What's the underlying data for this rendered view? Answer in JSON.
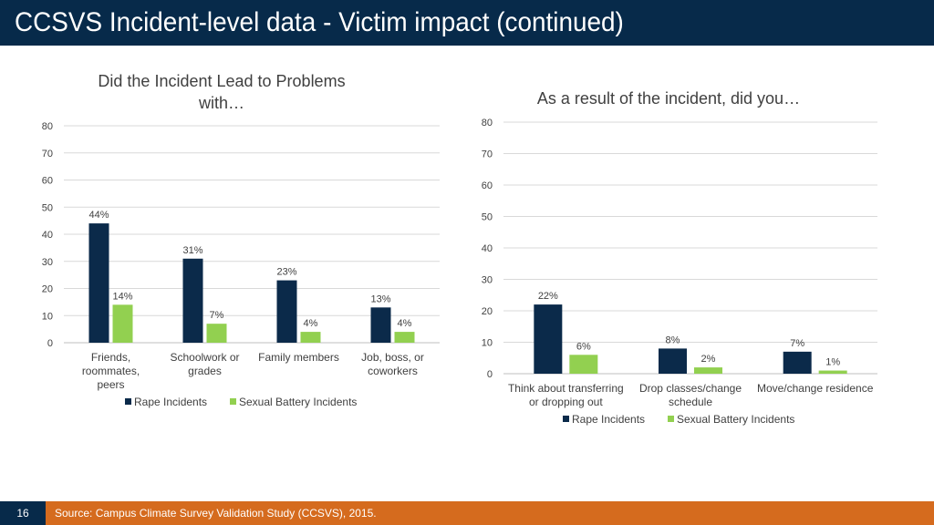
{
  "page": {
    "title": "CCSVS Incident-level data - Victim impact (continued)",
    "page_number": "16",
    "source": "Source: Campus Climate Survey Validation Study (CCSVS), 2015."
  },
  "colors": {
    "header_bg": "#072a4a",
    "footer_bg": "#d56b1e",
    "rape_series": "#0b2a4a",
    "battery_series": "#92d050"
  },
  "chart_data": [
    {
      "type": "bar",
      "title": [
        "Did the Incident Lead to Problems",
        "with…"
      ],
      "categories": [
        [
          "Friends,",
          "roommates,",
          "peers"
        ],
        [
          "Schoolwork or",
          "grades"
        ],
        [
          "Family members"
        ],
        [
          "Job, boss, or",
          "coworkers"
        ]
      ],
      "series": [
        {
          "name": "Rape Incidents",
          "values": [
            44,
            31,
            23,
            13
          ],
          "labels": [
            "44%",
            "31%",
            "23%",
            "13%"
          ]
        },
        {
          "name": "Sexual Battery Incidents",
          "values": [
            14,
            7,
            4,
            4
          ],
          "labels": [
            "14%",
            "7%",
            "4%",
            "4%"
          ]
        }
      ],
      "yticks": [
        "0",
        "10",
        "20",
        "30",
        "40",
        "50",
        "60",
        "70",
        "80"
      ],
      "ylim": [
        0,
        80
      ],
      "grid": true,
      "legend_position": "bottom"
    },
    {
      "type": "bar",
      "title": [
        "As a result of the incident, did you…"
      ],
      "categories": [
        [
          "Think about transferring",
          "or dropping out"
        ],
        [
          "Drop classes/change",
          "schedule"
        ],
        [
          "Move/change residence"
        ]
      ],
      "series": [
        {
          "name": "Rape Incidents",
          "values": [
            22,
            8,
            7
          ],
          "labels": [
            "22%",
            "8%",
            "7%"
          ]
        },
        {
          "name": "Sexual Battery Incidents",
          "values": [
            6,
            2,
            1
          ],
          "labels": [
            "6%",
            "2%",
            "1%"
          ]
        }
      ],
      "yticks": [
        "0",
        "10",
        "20",
        "30",
        "40",
        "50",
        "60",
        "70",
        "80"
      ],
      "ylim": [
        0,
        80
      ],
      "grid": true,
      "legend_position": "bottom"
    }
  ]
}
